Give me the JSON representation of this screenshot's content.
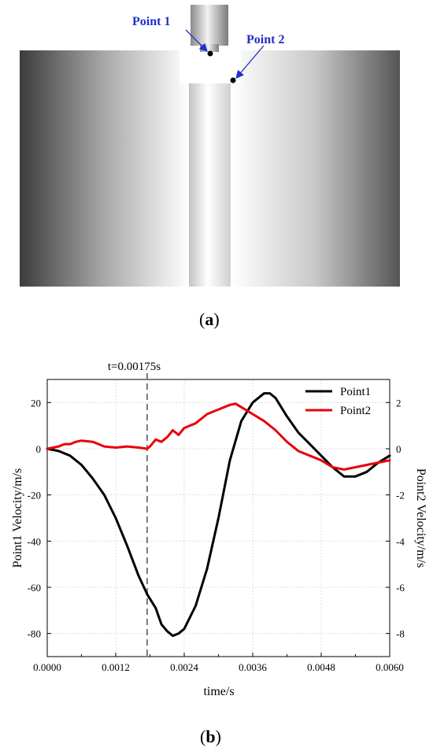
{
  "figure_a": {
    "sublabel_prefix": "(",
    "sublabel_letter": "a",
    "sublabel_suffix": ")",
    "point1_label": "Point 1",
    "point2_label": "Point 2",
    "annotation_color": "#1f2fc8"
  },
  "figure_b": {
    "sublabel_prefix": "(",
    "sublabel_letter": "b",
    "sublabel_suffix": ")"
  },
  "chart_data": {
    "type": "line",
    "title": "",
    "xlabel": "time/s",
    "ylabel_left": "Point1 Velocity/m/s",
    "ylabel_right": "Point2 Velocity/m/s",
    "xlim": [
      0,
      0.006
    ],
    "ylim_left": [
      -90,
      30
    ],
    "ylim_right": [
      -9,
      3
    ],
    "x_ticks": [
      0,
      0.0012,
      0.0024,
      0.0036,
      0.0048,
      0.006
    ],
    "x_tick_labels": [
      "0.0000",
      "0.0012",
      "0.0024",
      "0.0036",
      "0.0048",
      "0.0060"
    ],
    "y_ticks_left": [
      20,
      0,
      -20,
      -40,
      -60,
      -80
    ],
    "y_tick_labels_left": [
      "20",
      "0",
      "-20",
      "-40",
      "-60",
      "-80"
    ],
    "y_ticks_right": [
      2,
      0,
      -2,
      -4,
      -6,
      -8
    ],
    "y_tick_labels_right": [
      "2",
      "0",
      "-2",
      "-4",
      "-6",
      "-8"
    ],
    "grid": true,
    "legend_position": "top-right",
    "annotation": {
      "text": "t=0.00175s",
      "x": 0.00175
    },
    "series": [
      {
        "name": "Point1",
        "axis": "left",
        "color": "#000000",
        "x": [
          0,
          0.0002,
          0.0004,
          0.0006,
          0.0008,
          0.001,
          0.0012,
          0.0014,
          0.0016,
          0.00175,
          0.0019,
          0.002,
          0.0021,
          0.0022,
          0.0023,
          0.0024,
          0.0026,
          0.0028,
          0.003,
          0.0032,
          0.0034,
          0.0036,
          0.0038,
          0.0039,
          0.004,
          0.0042,
          0.0044,
          0.0046,
          0.0048,
          0.005,
          0.0052,
          0.0054,
          0.0056,
          0.0058,
          0.006
        ],
        "values": [
          0,
          -1,
          -3,
          -7,
          -13,
          -20,
          -30,
          -42,
          -55,
          -63,
          -69,
          -76,
          -79,
          -81,
          -80,
          -78,
          -68,
          -52,
          -30,
          -5,
          12,
          20,
          24,
          24,
          22,
          14,
          7,
          2,
          -3,
          -8,
          -12,
          -12,
          -10,
          -6,
          -3
        ]
      },
      {
        "name": "Point2",
        "axis": "right",
        "color": "#e8000b",
        "x": [
          0,
          0.0002,
          0.0003,
          0.0004,
          0.0005,
          0.0006,
          0.0008,
          0.001,
          0.0012,
          0.0014,
          0.0016,
          0.00175,
          0.0018,
          0.0019,
          0.002,
          0.0021,
          0.0022,
          0.0023,
          0.0024,
          0.0026,
          0.0028,
          0.003,
          0.0031,
          0.0032,
          0.0033,
          0.0034,
          0.0036,
          0.0038,
          0.004,
          0.0042,
          0.0044,
          0.0046,
          0.0048,
          0.005,
          0.0052,
          0.0054,
          0.0056,
          0.0058,
          0.006
        ],
        "values": [
          0,
          0.1,
          0.2,
          0.2,
          0.3,
          0.35,
          0.3,
          0.1,
          0.05,
          0.1,
          0.05,
          0.0,
          0.1,
          0.4,
          0.3,
          0.5,
          0.8,
          0.6,
          0.9,
          1.1,
          1.5,
          1.7,
          1.8,
          1.9,
          1.95,
          1.8,
          1.5,
          1.2,
          0.8,
          0.3,
          -0.1,
          -0.3,
          -0.5,
          -0.8,
          -0.9,
          -0.8,
          -0.7,
          -0.6,
          -0.5
        ]
      }
    ]
  }
}
